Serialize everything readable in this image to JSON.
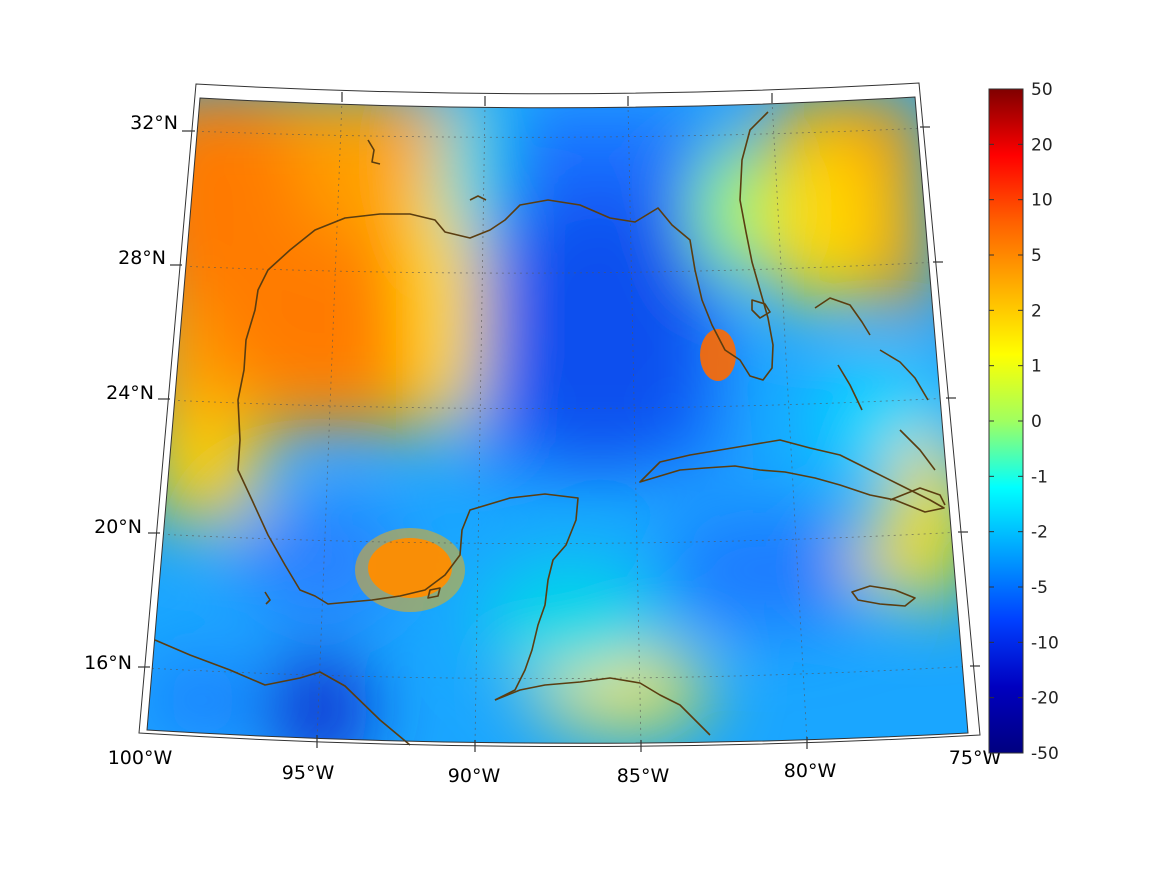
{
  "map": {
    "projection": "conic",
    "colormap": "jet",
    "lon_range": [
      "100°W",
      "75°W"
    ],
    "lat_range": [
      "14°N",
      "33°N"
    ],
    "graticule": true,
    "coastline_color": "#5a3d10",
    "lat_labels": [
      "32°N",
      "28°N",
      "24°N",
      "20°N",
      "16°N"
    ],
    "lon_labels": [
      "100°W",
      "95°W",
      "90°W",
      "85°W",
      "80°W",
      "75°W"
    ]
  },
  "colorbar": {
    "placement": "right",
    "ticks": [
      "50",
      "20",
      "10",
      "5",
      "2",
      "1",
      "0",
      "-1",
      "-2",
      "-5",
      "-10",
      "-20",
      "-50"
    ],
    "colors": [
      "#800000",
      "#ff0000",
      "#ff6000",
      "#ffb000",
      "#ffff00",
      "#a0ff60",
      "#00ffff",
      "#00a0ff",
      "#0040ff",
      "#0000c0",
      "#000080"
    ]
  }
}
